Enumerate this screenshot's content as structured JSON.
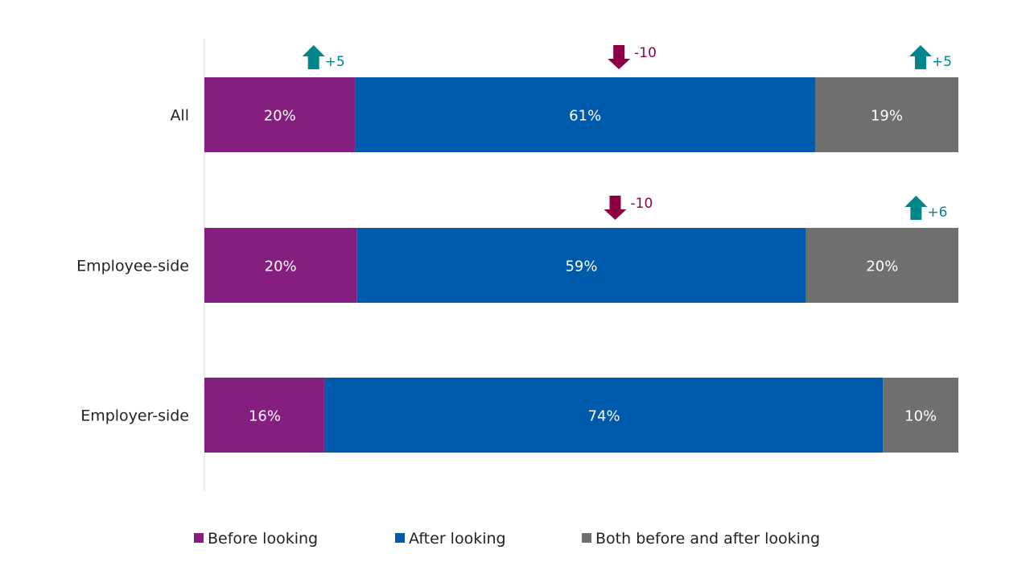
{
  "chart_data": {
    "type": "bar",
    "orientation": "horizontal",
    "stacked": true,
    "normalized_percent": true,
    "categories": [
      "All",
      "Employee-side",
      "Employer-side"
    ],
    "series": [
      {
        "name": "Before looking",
        "color": "#841F7F",
        "values": [
          20,
          20,
          16
        ],
        "labels": [
          "20%",
          "20%",
          "16%"
        ]
      },
      {
        "name": "After looking",
        "color": "#005AAC",
        "values": [
          61,
          59,
          74
        ],
        "labels": [
          "61%",
          "59%",
          "74%"
        ]
      },
      {
        "name": "Both before and after looking",
        "color": "#6F6F6E",
        "values": [
          19,
          20,
          10
        ],
        "labels": [
          "19%",
          "20%",
          "10%"
        ]
      }
    ],
    "annotations": [
      {
        "category": "All",
        "series": "Before looking",
        "direction": "up",
        "text": "+5",
        "color": "#00868B"
      },
      {
        "category": "All",
        "series": "After looking",
        "direction": "down",
        "text": "-10",
        "color": "#8E0045"
      },
      {
        "category": "All",
        "series": "Both before and after looking",
        "direction": "up",
        "text": "+5",
        "color": "#00868B"
      },
      {
        "category": "Employee-side",
        "series": "After looking",
        "direction": "down",
        "text": "-10",
        "color": "#8E0045"
      },
      {
        "category": "Employee-side",
        "series": "Both before and after looking",
        "direction": "up",
        "text": "+6",
        "color": "#00868B"
      }
    ],
    "xlim": [
      0,
      100
    ],
    "grid": false,
    "legend_position": "bottom",
    "title": "",
    "xlabel": "",
    "ylabel": ""
  }
}
